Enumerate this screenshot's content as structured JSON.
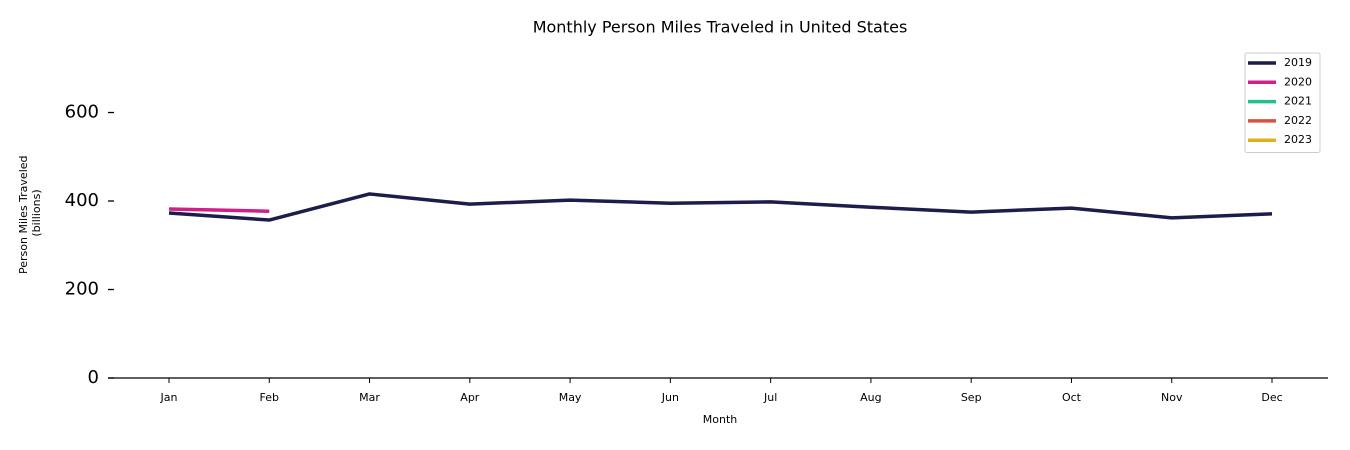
{
  "chart_data": {
    "type": "line",
    "title": "Monthly Person Miles Traveled in United States",
    "xlabel": "Month",
    "ylabel": [
      "Person Miles Traveled",
      "(billions)"
    ],
    "categories": [
      "Jan",
      "Feb",
      "Mar",
      "Apr",
      "May",
      "Jun",
      "Jul",
      "Aug",
      "Sep",
      "Oct",
      "Nov",
      "Dec"
    ],
    "series": [
      {
        "name": "2019",
        "color": "#1c1d4a",
        "values": [
          373,
          357,
          416,
          393,
          402,
          395,
          398,
          386,
          375,
          384,
          362,
          371
        ]
      },
      {
        "name": "2020",
        "color": "#d21f88",
        "values": [
          382,
          377,
          null,
          null,
          null,
          null,
          null,
          null,
          null,
          null,
          null,
          null
        ]
      },
      {
        "name": "2021",
        "color": "#22c08c",
        "values": [
          null,
          null,
          null,
          null,
          null,
          null,
          null,
          null,
          null,
          null,
          null,
          null
        ]
      },
      {
        "name": "2022",
        "color": "#dc5040",
        "values": [
          null,
          null,
          null,
          null,
          null,
          null,
          null,
          null,
          null,
          null,
          null,
          null
        ]
      },
      {
        "name": "2023",
        "color": "#e0b020",
        "values": [
          null,
          null,
          null,
          null,
          null,
          null,
          null,
          null,
          null,
          null,
          null,
          null
        ]
      }
    ],
    "ylim": [
      0,
      730
    ],
    "yticks": [
      0,
      200,
      400,
      600
    ],
    "grid": false,
    "legend": "upper right"
  }
}
